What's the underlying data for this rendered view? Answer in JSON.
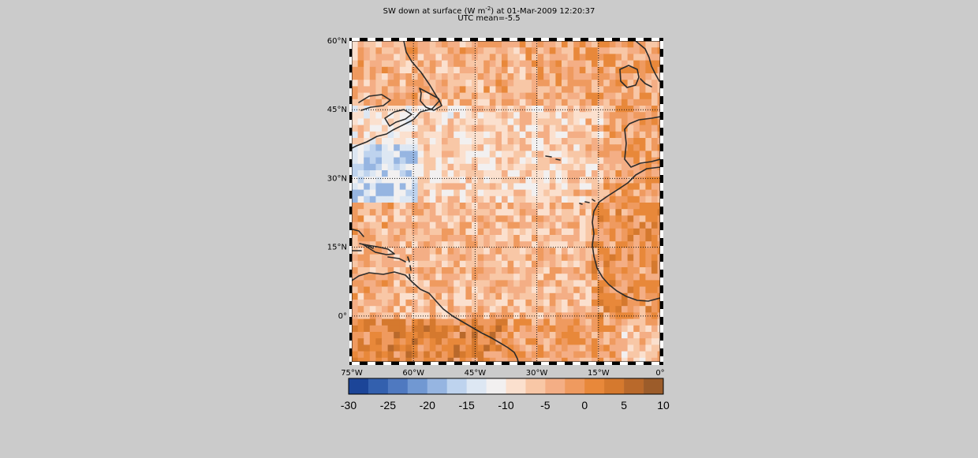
{
  "title": {
    "main_prefix": "SW down at surface (W m",
    "main_exponent": "-2",
    "main_suffix": ") at 01-Mar-2009 12:20:37",
    "subtitle": "UTC mean=-5.5"
  },
  "map": {
    "lon_range": [
      -75,
      0
    ],
    "lat_range": [
      -10,
      60
    ],
    "lat_ticks": [
      {
        "value": 60,
        "label": "60°N"
      },
      {
        "value": 45,
        "label": "45°N"
      },
      {
        "value": 30,
        "label": "30°N"
      },
      {
        "value": 15,
        "label": "15°N"
      },
      {
        "value": 0,
        "label": "0°"
      }
    ],
    "lon_ticks": [
      {
        "value": -75,
        "label": "75°W"
      },
      {
        "value": -60,
        "label": "60°W"
      },
      {
        "value": -45,
        "label": "45°W"
      },
      {
        "value": -30,
        "label": "30°W"
      },
      {
        "value": -15,
        "label": "15°W"
      },
      {
        "value": 0,
        "label": "0°"
      }
    ],
    "gridlines": "dotted",
    "field_mean": -5.5
  },
  "colorbar": {
    "min": -30,
    "max": 10,
    "tick_labels": [
      "-30",
      "-25",
      "-20",
      "-15",
      "-10",
      "-5",
      "0",
      "5",
      "10"
    ],
    "colors": [
      "#1c4598",
      "#3360ae",
      "#4f79c0",
      "#7198d2",
      "#96b5e1",
      "#bed3ee",
      "#dde7f3",
      "#f2f0f0",
      "#fbe0ce",
      "#f8c7a6",
      "#f4ae85",
      "#ef9a5f",
      "#e8883a",
      "#d5792e",
      "#b9692b",
      "#9c5c2a"
    ]
  },
  "colors": {
    "background": "#cbcbcb",
    "coastline": "#2b2b2b",
    "frame": "#000000"
  }
}
